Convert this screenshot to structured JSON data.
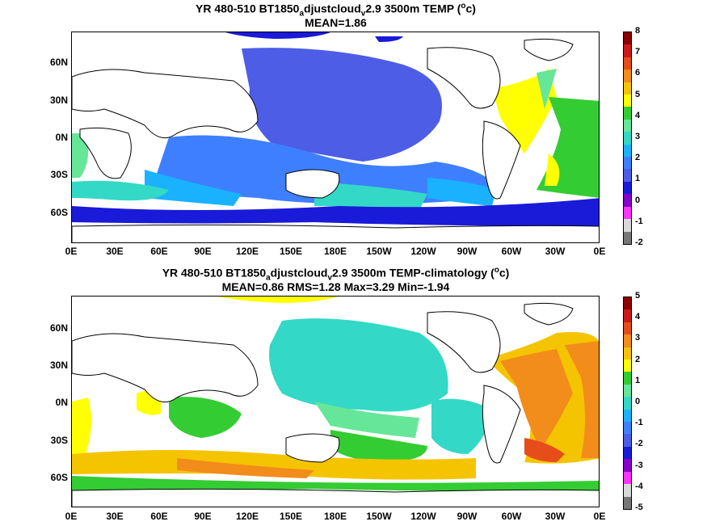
{
  "panel1": {
    "title_parts": [
      "YR 480-510 BT1850",
      "a",
      "djustcloud",
      "v",
      "2.9 3500m TEMP (",
      "o",
      "c)"
    ],
    "subtitle": "MEAN=1.86",
    "colorbar": {
      "labels": [
        "8",
        "7",
        "6",
        "5",
        "4",
        "3",
        "2",
        "1",
        "0",
        "-1",
        "-2"
      ],
      "colors": [
        "#8b0000",
        "#cc1a1a",
        "#e64d1a",
        "#f28c1a",
        "#f5c400",
        "#ffff00",
        "#33cc33",
        "#66e699",
        "#33d9c6",
        "#1ab2ff",
        "#3d7fff",
        "#4d5de6",
        "#1a1ad9",
        "#8800cc",
        "#ff33ff",
        "#d9d9d9",
        "#777777"
      ]
    }
  },
  "panel2": {
    "title_parts": [
      "YR 480-510 BT1850",
      "a",
      "djustcloud",
      "v",
      "2.9 3500m TEMP-climatology (",
      "o",
      "c)"
    ],
    "subtitle": "MEAN=0.86   RMS=1.28   Max=3.29   Min=-1.94",
    "colorbar": {
      "labels": [
        "5",
        "4",
        "3",
        "2",
        "1",
        "0",
        "-1",
        "-2",
        "-3",
        "-4",
        "-5"
      ],
      "colors": [
        "#8b0000",
        "#cc1a1a",
        "#e64d1a",
        "#f28c1a",
        "#f5c400",
        "#ffff00",
        "#33cc33",
        "#66e699",
        "#33d9c6",
        "#1ab2ff",
        "#3d7fff",
        "#4d5de6",
        "#1a1ad9",
        "#8800cc",
        "#ff33ff",
        "#d9d9d9",
        "#777777"
      ]
    }
  },
  "map": {
    "x_ticks": [
      "0E",
      "30E",
      "60E",
      "90E",
      "120E",
      "150E",
      "180E",
      "150W",
      "120W",
      "90W",
      "60W",
      "30W",
      "0E"
    ],
    "y_ticks": [
      "60N",
      "30N",
      "0N",
      "30S",
      "60S"
    ]
  }
}
